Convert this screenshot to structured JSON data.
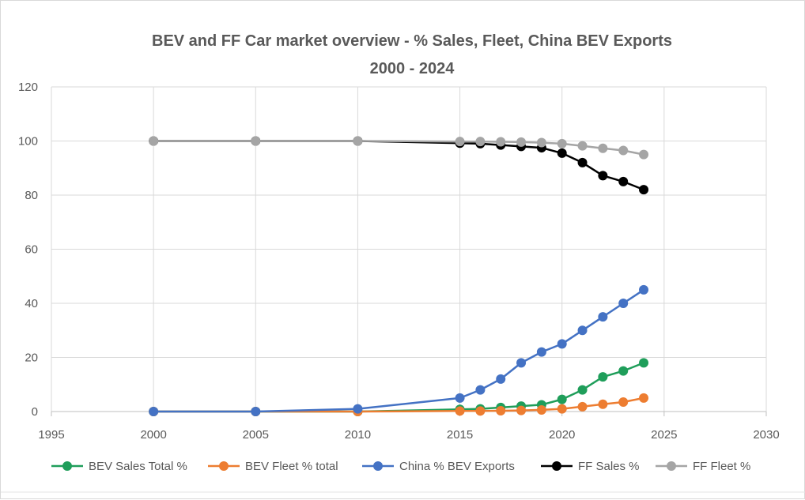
{
  "chart_data": {
    "type": "line",
    "title": "BEV and FF Car market overview - % Sales, Fleet,  China BEV Exports",
    "subtitle": "2000 - 2024",
    "xlabel": "",
    "ylabel": "",
    "xlim": [
      1995,
      2030
    ],
    "ylim": [
      0,
      120
    ],
    "x_ticks": [
      "1995",
      "2000",
      "2005",
      "2010",
      "2015",
      "2020",
      "2025",
      "2030"
    ],
    "y_ticks": [
      "0",
      "20",
      "40",
      "60",
      "80",
      "100",
      "120"
    ],
    "grid": true,
    "legend_position": "bottom",
    "series": [
      {
        "name": "BEV Sales Total %",
        "color": "#1f9e5a",
        "points": [
          [
            2000,
            0
          ],
          [
            2005,
            0
          ],
          [
            2010,
            0
          ],
          [
            2015,
            0.8
          ],
          [
            2016,
            1
          ],
          [
            2017,
            1.5
          ],
          [
            2018,
            2
          ],
          [
            2019,
            2.5
          ],
          [
            2020,
            4.5
          ],
          [
            2021,
            8
          ],
          [
            2022,
            12.8
          ],
          [
            2023,
            15
          ],
          [
            2024,
            18
          ]
        ]
      },
      {
        "name": "BEV Fleet % total",
        "color": "#ed7d31",
        "points": [
          [
            2000,
            0
          ],
          [
            2005,
            0
          ],
          [
            2010,
            0
          ],
          [
            2015,
            0.2
          ],
          [
            2016,
            0.2
          ],
          [
            2017,
            0.3
          ],
          [
            2018,
            0.4
          ],
          [
            2019,
            0.6
          ],
          [
            2020,
            1
          ],
          [
            2021,
            1.8
          ],
          [
            2022,
            2.7
          ],
          [
            2023,
            3.5
          ],
          [
            2024,
            5
          ]
        ]
      },
      {
        "name": "China % BEV Exports",
        "color": "#4472c4",
        "points": [
          [
            2000,
            0
          ],
          [
            2005,
            0
          ],
          [
            2010,
            1
          ],
          [
            2015,
            5
          ],
          [
            2016,
            8
          ],
          [
            2017,
            12
          ],
          [
            2018,
            18
          ],
          [
            2019,
            22
          ],
          [
            2020,
            25
          ],
          [
            2021,
            30
          ],
          [
            2022,
            35
          ],
          [
            2023,
            40
          ],
          [
            2024,
            45
          ]
        ]
      },
      {
        "name": "FF Sales %",
        "color": "#000000",
        "points": [
          [
            2000,
            100
          ],
          [
            2005,
            100
          ],
          [
            2010,
            100
          ],
          [
            2015,
            99.2
          ],
          [
            2016,
            99
          ],
          [
            2017,
            98.5
          ],
          [
            2018,
            98
          ],
          [
            2019,
            97.5
          ],
          [
            2020,
            95.5
          ],
          [
            2021,
            92
          ],
          [
            2022,
            87.2
          ],
          [
            2023,
            85
          ],
          [
            2024,
            82
          ]
        ]
      },
      {
        "name": "FF Fleet %",
        "color": "#a5a5a5",
        "points": [
          [
            2000,
            100
          ],
          [
            2005,
            100
          ],
          [
            2010,
            100
          ],
          [
            2015,
            99.8
          ],
          [
            2016,
            99.8
          ],
          [
            2017,
            99.7
          ],
          [
            2018,
            99.6
          ],
          [
            2019,
            99.4
          ],
          [
            2020,
            99
          ],
          [
            2021,
            98.2
          ],
          [
            2022,
            97.3
          ],
          [
            2023,
            96.5
          ],
          [
            2024,
            95
          ]
        ]
      }
    ]
  }
}
